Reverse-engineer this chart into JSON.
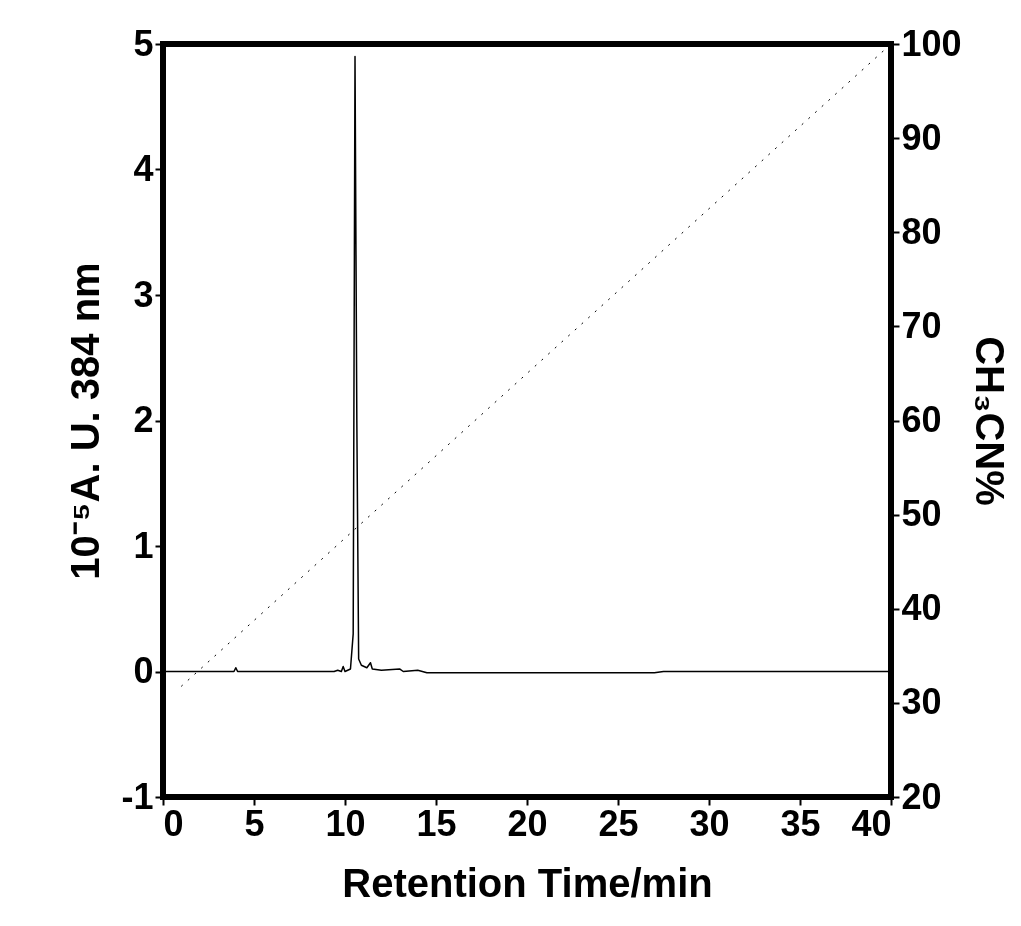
{
  "chart_data": {
    "type": "line",
    "xlabel": "Retention Time/min",
    "ylabel": "10⁻⁵A. U. 384 nm",
    "y2label": "CH₃CN%",
    "xlim": [
      0,
      40
    ],
    "xticks": [
      0,
      5,
      10,
      15,
      20,
      25,
      30,
      35,
      40
    ],
    "ylim": [
      -1,
      5
    ],
    "yticks": [
      -1,
      0,
      1,
      2,
      3,
      4,
      5
    ],
    "y2lim": [
      20,
      100
    ],
    "y2ticks": [
      20,
      30,
      40,
      50,
      60,
      70,
      80,
      90,
      100
    ],
    "grid": false,
    "series": [
      {
        "color": "#000000",
        "line_style": "solid",
        "x": [
          0,
          3.9,
          4.0,
          4.1,
          9.4,
          9.6,
          9.8,
          9.9,
          10.0,
          10.3,
          10.45,
          10.55,
          10.65,
          10.75,
          10.9,
          11.2,
          11.4,
          11.5,
          12,
          13.0,
          13.2,
          14,
          14.5,
          27,
          27.5,
          40
        ],
        "values": [
          0,
          0,
          0.03,
          0,
          0,
          0.01,
          0,
          0.04,
          0,
          0.02,
          0.3,
          4.9,
          2,
          0.1,
          0.05,
          0.03,
          0.07,
          0.02,
          0.01,
          0.02,
          0,
          0.01,
          -0.01,
          -0.01,
          0,
          0
        ]
      },
      {
        "color": "#000000",
        "line_style": "dotted",
        "axis": "y2",
        "x": [
          1,
          40
        ],
        "values": [
          31.75,
          100
        ]
      }
    ]
  }
}
